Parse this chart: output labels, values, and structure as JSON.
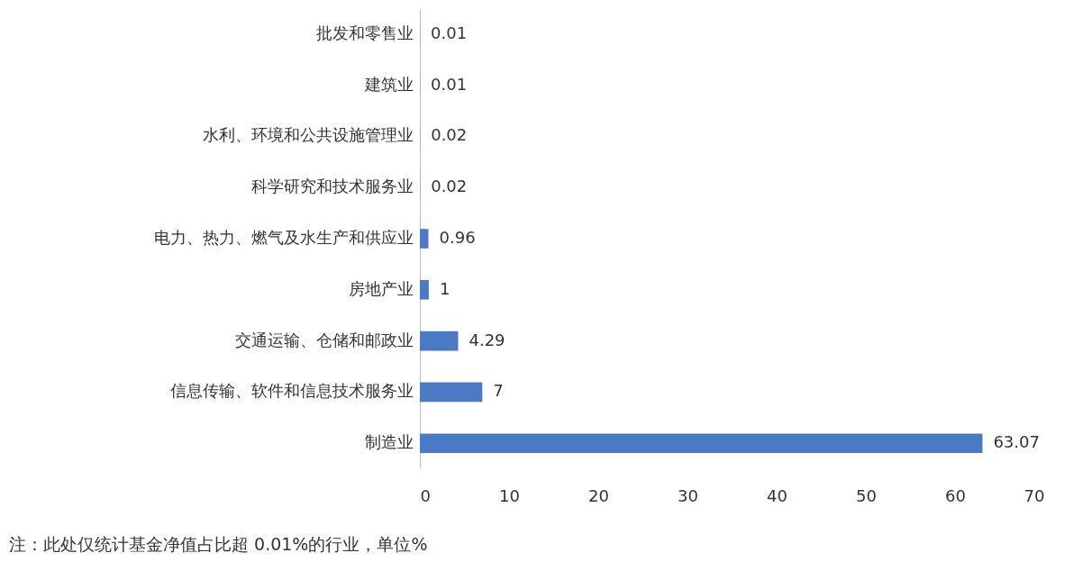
{
  "chart_data": {
    "type": "bar",
    "orientation": "horizontal",
    "categories": [
      "批发和零售业",
      "建筑业",
      "水利、环境和公共设施管理业",
      "科学研究和技术服务业",
      "电力、热力、燃气及水生产和供应业",
      "房地产业",
      "交通运输、仓储和邮政业",
      "信息传输、软件和信息技术服务业",
      "制造业"
    ],
    "values": [
      0.01,
      0.01,
      0.02,
      0.02,
      0.96,
      1,
      4.29,
      7,
      63.07
    ],
    "color": "#4a7ac4",
    "xlim": [
      0,
      70
    ],
    "xticks": [
      0,
      10,
      20,
      30,
      40,
      50,
      60,
      70
    ],
    "grid": false,
    "data_labels": true,
    "annotations": [
      "注：此处仅统计基金净值占比超 0.01%的行业，单位%"
    ]
  }
}
